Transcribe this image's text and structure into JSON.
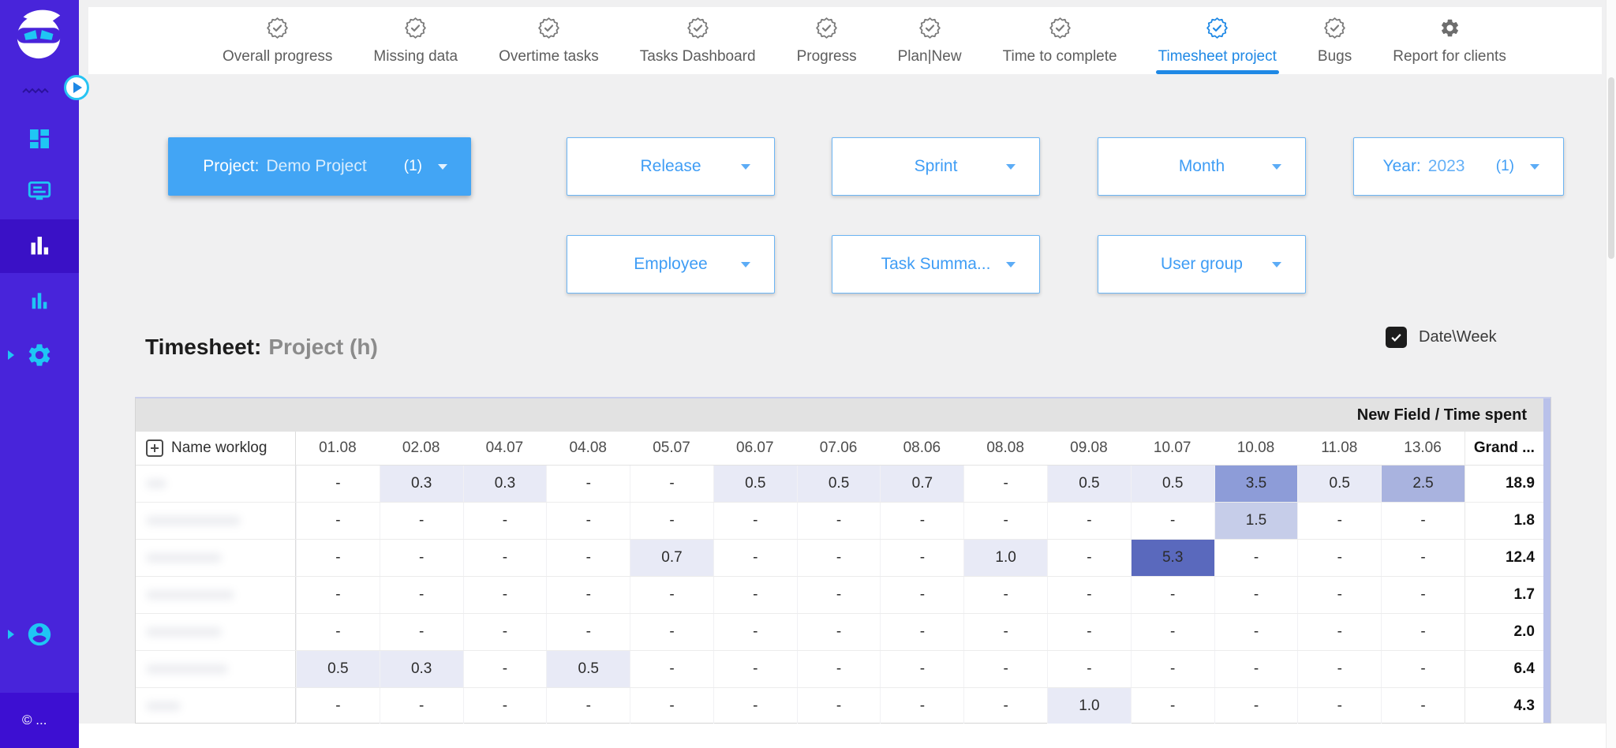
{
  "colors": {
    "accent_blue": "#1e88e5",
    "filled_button_blue": "#42a5f5",
    "sidebar_purple": "#4824da",
    "sidebar_active_purple": "#3a11c6",
    "icon_cyan": "#1fc6f4",
    "heat_scale": [
      "#e8eaf6",
      "#c6cde9",
      "#a9b3df",
      "#8d9cd8",
      "#5a69bd"
    ]
  },
  "sidebar": {
    "copyright": "© ...",
    "items": [
      "dashboard",
      "boards",
      "reports",
      "charts",
      "settings",
      "account"
    ]
  },
  "nav": {
    "tabs": [
      {
        "label": "Overall progress",
        "icon": "badge-check",
        "active": false
      },
      {
        "label": "Missing data",
        "icon": "badge-check",
        "active": false
      },
      {
        "label": "Overtime tasks",
        "icon": "badge-check",
        "active": false
      },
      {
        "label": "Tasks Dashboard",
        "icon": "badge-check",
        "active": false
      },
      {
        "label": "Progress",
        "icon": "badge-check",
        "active": false
      },
      {
        "label": "Plan|New",
        "icon": "badge-check",
        "active": false
      },
      {
        "label": "Time to complete",
        "icon": "badge-check",
        "active": false
      },
      {
        "label": "Timesheet project",
        "icon": "badge-check",
        "active": true
      },
      {
        "label": "Bugs",
        "icon": "badge-check",
        "active": false
      },
      {
        "label": "Report for clients",
        "icon": "gear",
        "active": false
      }
    ]
  },
  "filters": {
    "row1": [
      {
        "style": "filled",
        "label": "Project:",
        "value": "Demo Project",
        "count": "(1)"
      },
      {
        "style": "outline",
        "label": "Release",
        "value": "",
        "count": ""
      },
      {
        "style": "outline",
        "label": "Sprint",
        "value": "",
        "count": ""
      },
      {
        "style": "outline",
        "label": "Month",
        "value": "",
        "count": ""
      },
      {
        "style": "outline",
        "label": "Year:",
        "value": "2023",
        "count": "(1)"
      }
    ],
    "row2": [
      {
        "style": "outline",
        "label": "Employee",
        "value": "",
        "count": ""
      },
      {
        "style": "outline",
        "label": "Task Summa...",
        "value": "",
        "count": ""
      },
      {
        "style": "outline",
        "label": "User group",
        "value": "",
        "count": ""
      }
    ]
  },
  "title": {
    "prefix": "Timesheet:",
    "suffix": "Project (h)"
  },
  "toolbar": {
    "dateweek_label": "Date\\Week",
    "checked": true
  },
  "table": {
    "corner_label": "New Field / Time spent",
    "name_header": "Name worklog",
    "columns": [
      "01.08",
      "02.08",
      "04.07",
      "04.08",
      "05.07",
      "06.07",
      "07.06",
      "08.06",
      "08.08",
      "09.08",
      "10.07",
      "10.08",
      "11.08",
      "13.06"
    ],
    "grand_header": "Grand ...",
    "empty_cell": "-",
    "rows": [
      {
        "values": [
          null,
          0.3,
          0.3,
          null,
          null,
          0.5,
          0.5,
          0.7,
          null,
          0.5,
          0.5,
          3.5,
          0.5,
          2.5
        ],
        "grand": "18.9"
      },
      {
        "values": [
          null,
          null,
          null,
          null,
          null,
          null,
          null,
          null,
          null,
          null,
          null,
          1.5,
          null,
          null
        ],
        "grand": "1.8"
      },
      {
        "values": [
          null,
          null,
          null,
          null,
          0.7,
          null,
          null,
          null,
          1.0,
          null,
          5.3,
          null,
          null,
          null
        ],
        "grand": "12.4"
      },
      {
        "values": [
          null,
          null,
          null,
          null,
          null,
          null,
          null,
          null,
          null,
          null,
          null,
          null,
          null,
          null
        ],
        "grand": "1.7"
      },
      {
        "values": [
          null,
          null,
          null,
          null,
          null,
          null,
          null,
          null,
          null,
          null,
          null,
          null,
          null,
          null
        ],
        "grand": "2.0"
      },
      {
        "values": [
          0.5,
          0.3,
          null,
          0.5,
          null,
          null,
          null,
          null,
          null,
          null,
          null,
          null,
          null,
          null
        ],
        "grand": "6.4"
      },
      {
        "values": [
          null,
          null,
          null,
          null,
          null,
          null,
          null,
          null,
          null,
          1.0,
          null,
          null,
          null,
          null
        ],
        "grand": "4.3"
      }
    ]
  }
}
